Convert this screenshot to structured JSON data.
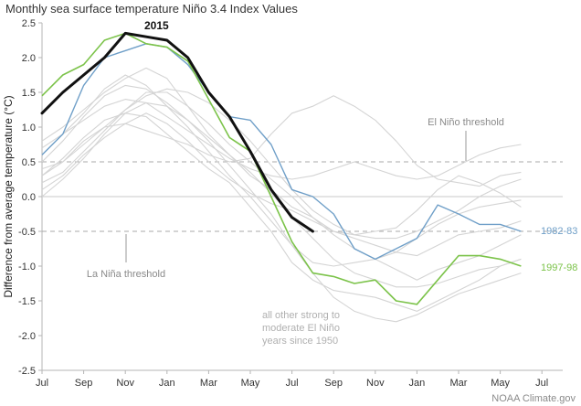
{
  "chart_data": {
    "type": "line",
    "title": "Monthly sea surface temperature Niño 3.4 Index Values",
    "ylabel": "Difference from average temperature (°C)",
    "xlabel": "",
    "ylim": [
      -2.5,
      2.5
    ],
    "yticks": [
      "2.5",
      "2.0",
      "1.5",
      "1.0",
      "0.5",
      "0.0",
      "-0.5",
      "-1.0",
      "-1.5",
      "-2.0",
      "-2.5"
    ],
    "x_tick_labels": [
      "Jul",
      "Sep",
      "Nov",
      "Jan",
      "Mar",
      "May",
      "Jul",
      "Sep",
      "Nov",
      "Jan",
      "Mar",
      "May",
      "Jul"
    ],
    "thresholds": [
      {
        "name": "El Niño threshold",
        "value": 0.5
      },
      {
        "name": "La Niña threshold",
        "value": -0.5
      }
    ],
    "annotations": {
      "el_nino_threshold": "El Niño threshold",
      "la_nina_threshold": "La Niña threshold",
      "other_years_line1": "all other strong to",
      "other_years_line2": "moderate El Niño",
      "other_years_line3": "years since 1950"
    },
    "credit": "NOAA Climate.gov",
    "colors": {
      "s2015": "#111111",
      "s1982": "#6f9fc8",
      "s1997": "#7cc34a",
      "other": "#d4d4d4",
      "axis": "#b5b5b5",
      "threshold": "#a8a8a8"
    },
    "series": [
      {
        "name": "2015",
        "color": "#111111",
        "values": [
          1.2,
          1.5,
          1.75,
          2.0,
          2.35,
          2.3,
          2.25,
          2.0,
          1.5,
          1.15,
          0.65,
          0.1,
          -0.3,
          -0.5
        ]
      },
      {
        "name": "1982-83",
        "color": "#6f9fc8",
        "values": [
          0.6,
          0.9,
          1.6,
          2.0,
          2.1,
          2.2,
          2.15,
          1.9,
          1.5,
          1.15,
          1.1,
          0.75,
          0.1,
          0.0,
          -0.25,
          -0.75,
          -0.9,
          -0.75,
          -0.6,
          -0.12,
          -0.25,
          -0.4,
          -0.4,
          -0.5
        ]
      },
      {
        "name": "1997-98",
        "color": "#7cc34a",
        "values": [
          1.45,
          1.75,
          1.9,
          2.25,
          2.35,
          2.2,
          2.15,
          1.95,
          1.4,
          0.85,
          0.65,
          0.0,
          -0.65,
          -1.1,
          -1.15,
          -1.25,
          -1.2,
          -1.5,
          -1.55,
          -1.2,
          -0.85,
          -0.85,
          -0.9,
          -1.0
        ]
      },
      {
        "values": [
          0.3,
          0.55,
          0.85,
          1.1,
          1.2,
          1.15,
          0.9,
          0.65,
          0.4,
          0.2,
          -0.15,
          -0.5,
          -0.95,
          -1.2,
          -1.35,
          -1.4,
          -1.45,
          -1.55,
          -1.65,
          -1.5,
          -1.35,
          -1.2,
          -1.0,
          -0.9
        ]
      },
      {
        "values": [
          0.0,
          0.25,
          0.55,
          0.9,
          1.2,
          1.35,
          1.3,
          1.1,
          0.8,
          0.45,
          0.1,
          -0.25,
          -0.7,
          -1.1,
          -1.45,
          -1.65,
          -1.75,
          -1.8,
          -1.7,
          -1.55,
          -1.4,
          -1.3,
          -1.2,
          -1.1
        ]
      },
      {
        "values": [
          0.6,
          0.9,
          1.2,
          1.55,
          1.75,
          1.6,
          1.3,
          1.0,
          0.65,
          0.3,
          0.0,
          -0.35,
          -0.7,
          -0.95,
          -1.0,
          -0.95,
          -0.9,
          -0.8,
          -0.6,
          -0.4,
          -0.25,
          -0.15,
          -0.1,
          -0.05
        ]
      },
      {
        "values": [
          0.4,
          0.5,
          0.8,
          1.0,
          1.05,
          0.95,
          0.85,
          0.75,
          0.6,
          0.5,
          0.55,
          0.9,
          1.2,
          1.3,
          1.45,
          1.3,
          1.1,
          0.8,
          0.45,
          0.25,
          0.2,
          0.15,
          0.3,
          0.35
        ]
      },
      {
        "values": [
          0.2,
          0.35,
          0.65,
          0.95,
          1.25,
          1.5,
          1.5,
          1.3,
          1.05,
          0.75,
          0.5,
          0.25,
          0.0,
          -0.3,
          -0.55,
          -0.75,
          -0.9,
          -1.05,
          -1.2,
          -1.05,
          -0.95,
          -0.85,
          -0.7,
          -0.55
        ]
      },
      {
        "values": [
          0.5,
          0.8,
          1.15,
          1.45,
          1.6,
          1.55,
          1.35,
          1.1,
          0.85,
          0.6,
          0.35,
          0.05,
          -0.3,
          -0.6,
          -0.9,
          -1.1,
          -1.2,
          -1.3,
          -1.3,
          -1.25,
          -1.15,
          -1.05,
          -1.0,
          -0.9
        ]
      },
      {
        "values": [
          0.8,
          1.0,
          1.25,
          1.5,
          1.7,
          1.85,
          1.7,
          1.3,
          0.9,
          0.6,
          0.3,
          0.1,
          -0.15,
          -0.3,
          -0.5,
          -0.55,
          -0.5,
          -0.45,
          -0.2,
          0.1,
          0.3,
          0.2,
          0.05,
          -0.15
        ]
      },
      {
        "values": [
          0.1,
          0.3,
          0.6,
          0.85,
          1.05,
          1.2,
          1.05,
          0.8,
          0.5,
          0.25,
          0.05,
          -0.1,
          -0.2,
          -0.35,
          -0.5,
          -0.6,
          -0.7,
          -0.8,
          -0.85,
          -0.7,
          -0.55,
          -0.5,
          -0.45,
          -0.35
        ]
      },
      {
        "values": [
          0.7,
          0.9,
          1.1,
          1.3,
          1.4,
          1.35,
          1.15,
          0.95,
          0.75,
          0.55,
          0.4,
          0.3,
          0.25,
          0.3,
          0.4,
          0.5,
          0.4,
          0.3,
          0.25,
          0.3,
          0.45,
          0.6,
          0.7,
          0.75
        ]
      },
      {
        "values": [
          0.3,
          0.5,
          0.75,
          1.0,
          1.25,
          1.45,
          1.55,
          1.5,
          1.35,
          1.1,
          0.8,
          0.45,
          0.1,
          -0.2,
          -0.4,
          -0.55,
          -0.6,
          -0.6,
          -0.5,
          -0.35,
          -0.2,
          0.0,
          0.15,
          0.25
        ]
      }
    ]
  }
}
